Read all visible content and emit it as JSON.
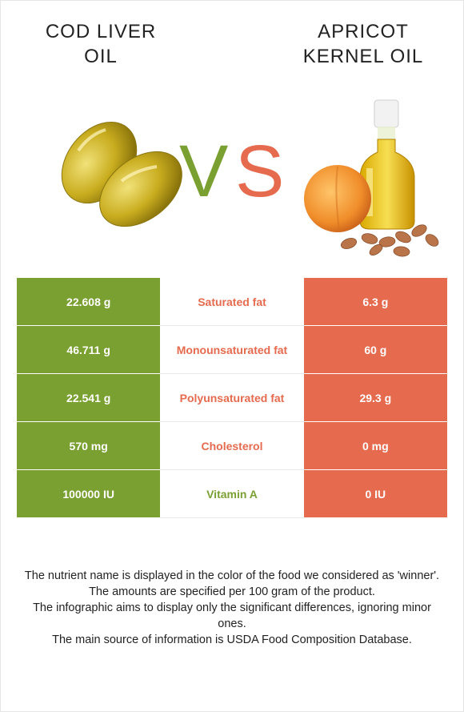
{
  "colors": {
    "left_accent": "#7aa032",
    "right_accent": "#e56a4e"
  },
  "left_food": {
    "name": "COD LIVER OIL",
    "line1": "COD LIVER",
    "line2": "OIL",
    "image_icon": "capsules-icon"
  },
  "right_food": {
    "name": "APRICOT KERNEL OIL",
    "line1": "APRICOT",
    "line2": "KERNEL OIL",
    "image_icon": "oil-bottle-apricot-icon"
  },
  "vs": {
    "v": "V",
    "s": "S"
  },
  "rows": [
    {
      "left": "22.608 g",
      "nutrient": "Saturated fat",
      "right": "6.3 g",
      "winner": "right"
    },
    {
      "left": "46.711 g",
      "nutrient": "Monounsaturated fat",
      "right": "60 g",
      "winner": "right"
    },
    {
      "left": "22.541 g",
      "nutrient": "Polyunsaturated fat",
      "right": "29.3 g",
      "winner": "right"
    },
    {
      "left": "570 mg",
      "nutrient": "Cholesterol",
      "right": "0 mg",
      "winner": "right"
    },
    {
      "left": "100000 IU",
      "nutrient": "Vitamin A",
      "right": "0 IU",
      "winner": "left"
    }
  ],
  "footer": [
    "The nutrient name is displayed in the color of the food we considered as 'winner'.",
    "The amounts are specified per 100 gram of the product.",
    "The infographic aims to display only the significant differences, ignoring minor ones.",
    "The main source of information is USDA Food Composition Database."
  ]
}
